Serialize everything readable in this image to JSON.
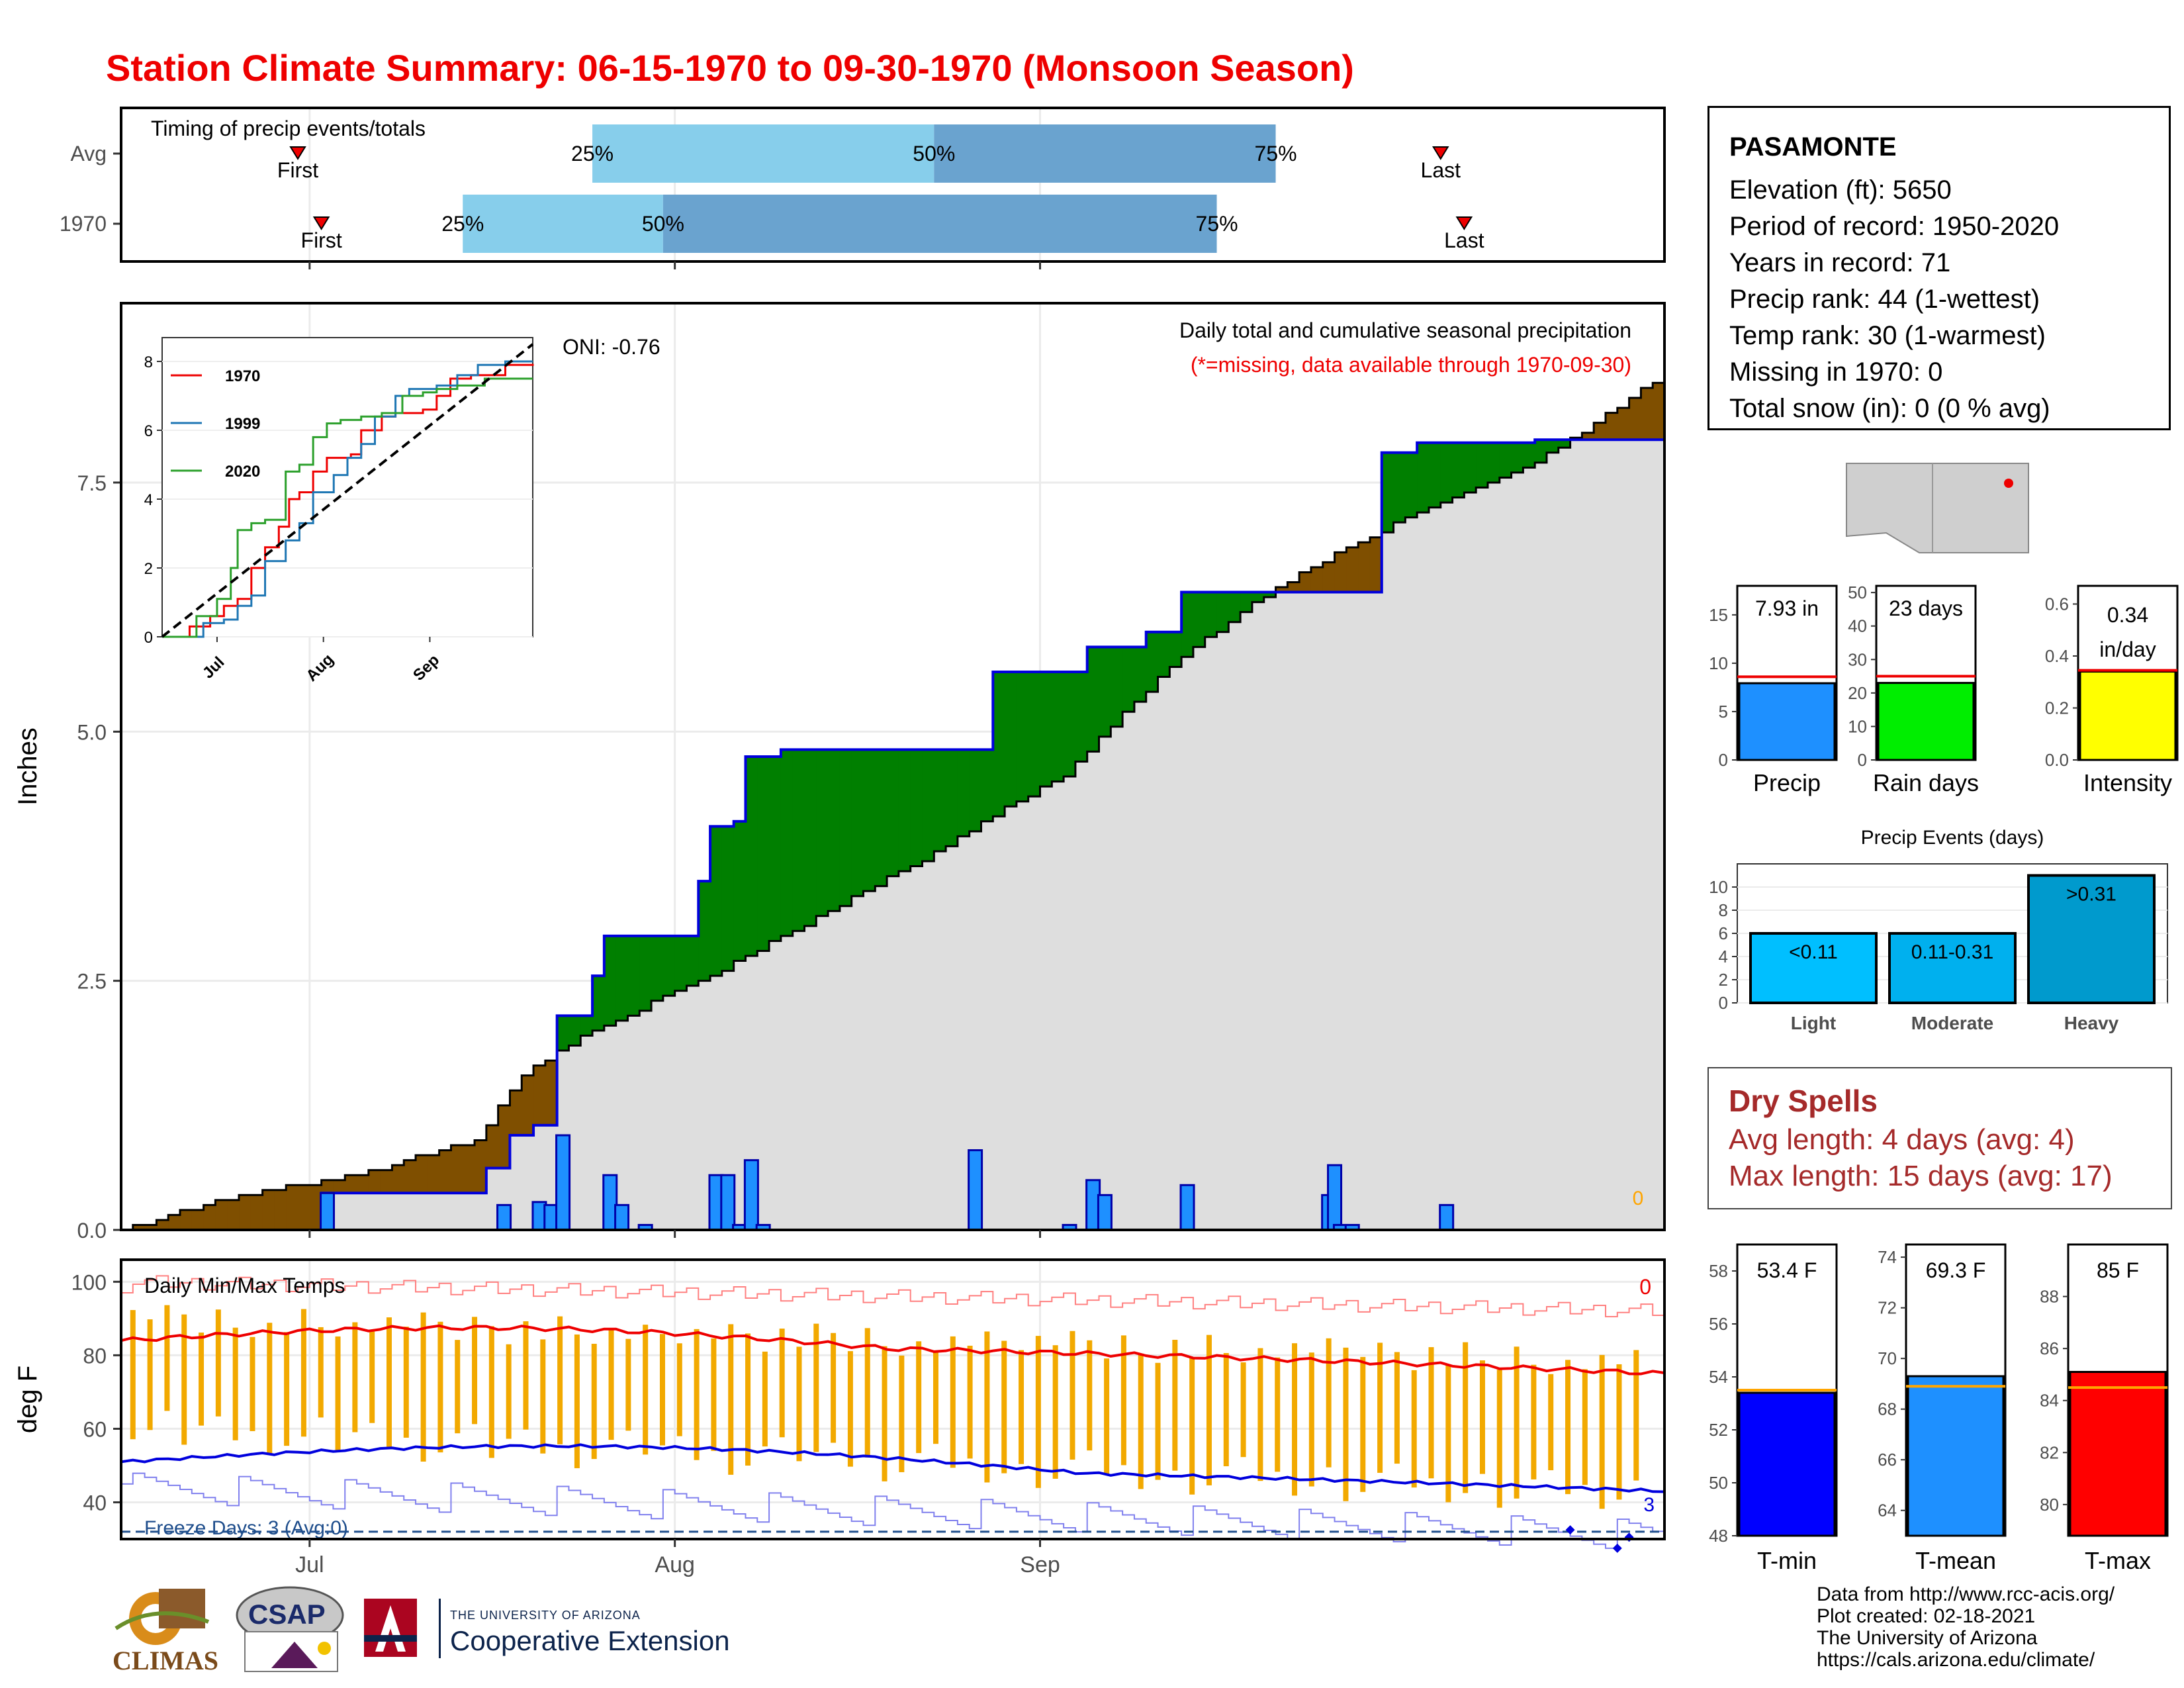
{
  "title": "Station Climate Summary: 06-15-1970 to 09-30-1970 (Monsoon Season)",
  "colors": {
    "title": "#ee0000",
    "wetter_fill": "#007f00",
    "drier_fill": "#7f4f00",
    "avg_area": "#dedede",
    "daily_bar": "#1e90ff",
    "timing_light": "#87ceeb",
    "timing_dark": "#6aa3cf",
    "temp_bar": "#f2a900",
    "max_line": "#ee0000",
    "min_line": "#0000dd"
  },
  "station": {
    "name": "PASAMONTE",
    "lines": [
      "Elevation (ft): 5650",
      "Period of record: 1950-2020",
      "Years in record: 71",
      "Precip rank: 44 (1-wettest)",
      "Temp rank: 30 (1-warmest)",
      "Missing in 1970: 0",
      "Total snow (in): 0 (0 % avg)"
    ]
  },
  "timing": {
    "title": "Timing of precip events/totals",
    "rows": [
      {
        "label": "Avg",
        "first": "First",
        "last": "Last",
        "p25": "25%",
        "p50": "50%",
        "p75": "75%",
        "first_day": 15,
        "p25_day": 40,
        "p50_day": 69,
        "p75_day": 98,
        "last_day": 112
      },
      {
        "label": "1970",
        "first": "First",
        "last": "Last",
        "p25": "25%",
        "p50": "50%",
        "p75": "75%",
        "first_day": 17,
        "p25_day": 29,
        "p50_day": 46,
        "p75_day": 93,
        "last_day": 114
      }
    ]
  },
  "precip_panel": {
    "ylabel": "Inches",
    "oni": "ONI: -0.76",
    "caption": "Daily total and cumulative seasonal precipitation",
    "missing_note": "(*=missing, data available through 1970-09-30)",
    "missing_count": "0"
  },
  "inset": {
    "legend": [
      "1970",
      "1999",
      "2020"
    ],
    "legend_colors": [
      "#ee0000",
      "#1f77b4",
      "#2ca02c"
    ]
  },
  "x_axis_months": [
    "Jul",
    "Aug",
    "Sep"
  ],
  "temp_panel": {
    "ylabel": "deg F",
    "title": "Daily Min/Max Temps",
    "missing_count": "0",
    "freeze": "Freeze Days: 3 (Avg:0)",
    "freeze_count": "3"
  },
  "summary_bars": [
    {
      "name": "Precip",
      "label": "7.93 in",
      "value": 7.93,
      "avg": 8.6,
      "ymax": 18,
      "ticks": [
        "0",
        "5",
        "10",
        "15"
      ],
      "tickvals": [
        0,
        5,
        10,
        15
      ],
      "color": "#1e90ff"
    },
    {
      "name": "Rain days",
      "label": "23 days",
      "value": 23,
      "avg": 25,
      "ymax": 52,
      "ticks": [
        "0",
        "10",
        "20",
        "30",
        "40",
        "50"
      ],
      "tickvals": [
        0,
        10,
        20,
        30,
        40,
        50
      ],
      "color": "#00ee00"
    },
    {
      "name": "Intensity",
      "label": "0.34 in/day",
      "value": 0.34,
      "avg": 0.345,
      "ymax": 0.67,
      "ticks": [
        "0.0",
        "0.2",
        "0.4",
        "0.6"
      ],
      "tickvals": [
        0,
        0.2,
        0.4,
        0.6
      ],
      "color": "#ffff00"
    }
  ],
  "events": {
    "title": "Precip Events (days)",
    "categories": [
      "Light",
      "Moderate",
      "Heavy"
    ],
    "bar_labels": [
      "<0.11",
      "0.11-0.31",
      ">0.31"
    ],
    "values": [
      6,
      6,
      11
    ],
    "ticks": [
      "0",
      "2",
      "4",
      "6",
      "8",
      "10"
    ],
    "tickvals": [
      0,
      2,
      4,
      6,
      8,
      10
    ],
    "colors": [
      "#00bfff",
      "#00b0ee",
      "#009acd"
    ]
  },
  "dry_spells": {
    "title": "Dry Spells",
    "avg": "Avg length: 4 days (avg: 4)",
    "max": "Max length: 15 days (avg: 17)"
  },
  "temp_bars": [
    {
      "name": "T-min",
      "label": "53.4 F",
      "value": 53.4,
      "avg": 53.5,
      "ymin": 48,
      "ymax": 59,
      "ticks": [
        "48",
        "50",
        "52",
        "54",
        "56",
        "58"
      ],
      "tickvals": [
        48,
        50,
        52,
        54,
        56,
        58
      ],
      "color": "#0000ff"
    },
    {
      "name": "T-mean",
      "label": "69.3 F",
      "value": 69.3,
      "avg": 68.9,
      "ymin": 63,
      "ymax": 74.5,
      "ticks": [
        "64",
        "66",
        "68",
        "70",
        "72",
        "74"
      ],
      "tickvals": [
        64,
        66,
        68,
        70,
        72,
        74
      ],
      "color": "#1e90ff"
    },
    {
      "name": "T-max",
      "label": "85 F",
      "value": 85.1,
      "avg": 84.5,
      "ymin": 78.8,
      "ymax": 90,
      "ticks": [
        "80",
        "82",
        "84",
        "86",
        "88"
      ],
      "tickvals": [
        80,
        82,
        84,
        86,
        88
      ],
      "color": "#ff0000"
    }
  ],
  "credits": [
    "Data from http://www.rcc-acis.org/",
    "Plot created: 02-18-2021",
    "The University of Arizona",
    "https://cals.arizona.edu/climate/"
  ],
  "logos": {
    "climas": "CLIMAS",
    "csap": "CSAP",
    "ua_small": "THE UNIVERSITY OF ARIZONA",
    "ua_big": "Cooperative Extension"
  },
  "chart_data": [
    {
      "type": "area",
      "title": "Daily total and cumulative seasonal precipitation",
      "ylabel": "Inches",
      "ylim": [
        0,
        9.3
      ],
      "yticks": [
        0,
        2.5,
        5.0,
        7.5
      ],
      "x": "days from 06-15 (0) to 09-30 (107)",
      "series": [
        {
          "name": "1970",
          "points": [
            [
              0,
              0
            ],
            [
              17,
              0.37
            ],
            [
              30,
              0.37
            ],
            [
              31,
              0.62
            ],
            [
              32,
              0.62
            ],
            [
              33,
              0.95
            ],
            [
              35,
              1.05
            ],
            [
              37,
              2.15
            ],
            [
              38,
              2.15
            ],
            [
              40,
              2.55
            ],
            [
              41,
              2.95
            ],
            [
              46,
              2.95
            ],
            [
              49,
              3.5
            ],
            [
              50,
              4.05
            ],
            [
              52,
              4.1
            ],
            [
              53,
              4.75
            ],
            [
              54,
              4.75
            ],
            [
              56,
              4.82
            ],
            [
              72,
              4.82
            ],
            [
              74,
              5.6
            ],
            [
              80,
              5.6
            ],
            [
              82,
              5.85
            ],
            [
              87,
              6.0
            ],
            [
              90,
              6.4
            ],
            [
              102,
              6.4
            ],
            [
              107,
              7.8
            ],
            [
              110,
              7.9
            ],
            [
              120,
              7.93
            ]
          ]
        },
        {
          "name": "Avg",
          "points": [
            [
              0,
              0
            ],
            [
              10,
              0.35
            ],
            [
              20,
              0.55
            ],
            [
              30,
              0.9
            ],
            [
              34,
              1.55
            ],
            [
              40,
              2.0
            ],
            [
              50,
              2.55
            ],
            [
              60,
              3.2
            ],
            [
              70,
              3.85
            ],
            [
              75,
              4.25
            ],
            [
              80,
              4.55
            ],
            [
              85,
              5.2
            ],
            [
              90,
              5.75
            ],
            [
              95,
              6.2
            ],
            [
              100,
              6.6
            ],
            [
              110,
              7.2
            ],
            [
              120,
              7.7
            ],
            [
              125,
              8.1
            ],
            [
              131,
              8.6
            ]
          ]
        }
      ],
      "daily_bars": [
        [
          17,
          0.37
        ],
        [
          32,
          0.25
        ],
        [
          35,
          0.28
        ],
        [
          36,
          0.25
        ],
        [
          37,
          0.95
        ],
        [
          41,
          0.55
        ],
        [
          42,
          0.25
        ],
        [
          44,
          0.05
        ],
        [
          50,
          0.55
        ],
        [
          51,
          0.55
        ],
        [
          52,
          0.05
        ],
        [
          53,
          0.7
        ],
        [
          54,
          0.05
        ],
        [
          72,
          0.8
        ],
        [
          80,
          0.05
        ],
        [
          82,
          0.5
        ],
        [
          83,
          0.35
        ],
        [
          90,
          0.45
        ],
        [
          102,
          0.35
        ],
        [
          102.5,
          0.65
        ],
        [
          103,
          0.05
        ],
        [
          104,
          0.05
        ],
        [
          112,
          0.25
        ]
      ]
    },
    {
      "type": "line",
      "title": "Daily Min/Max Temps",
      "ylabel": "deg F",
      "ylim": [
        30,
        106
      ],
      "yticks": [
        40,
        60,
        80,
        100
      ],
      "series": [
        {
          "name": "Avg max",
          "values_start_end": [
            84,
            75
          ]
        },
        {
          "name": "Avg min",
          "values_start_end": [
            51,
            43
          ]
        }
      ]
    }
  ]
}
